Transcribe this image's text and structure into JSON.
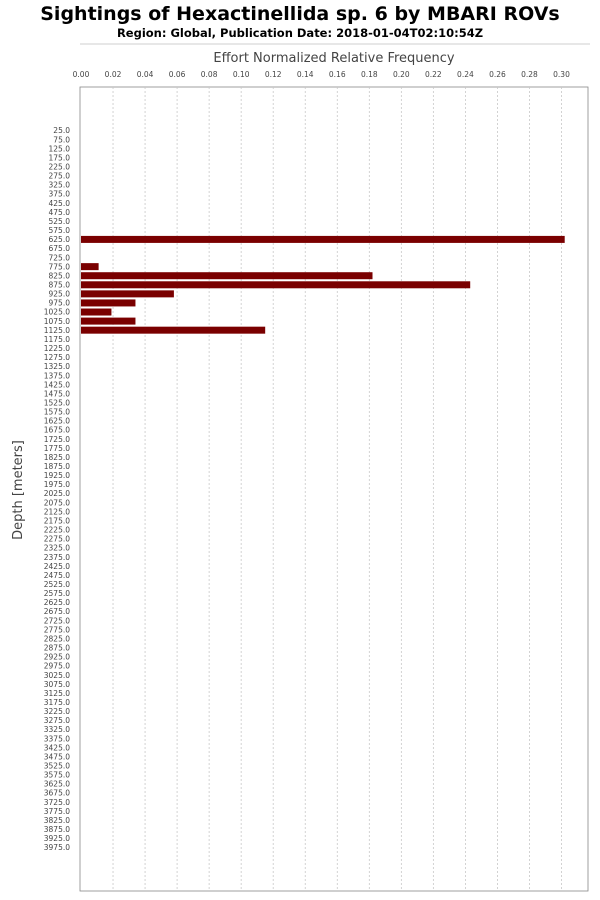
{
  "chart_data": {
    "type": "bar",
    "orientation": "horizontal",
    "title": "Sightings of Hexactinellida sp. 6 by MBARI ROVs",
    "subtitle": "Region: Global, Publication Date: 2018-01-04T02:10:54Z",
    "xlabel": "Effort Normalized Relative Frequency",
    "ylabel": "Depth [meters]",
    "xlim": [
      0,
      0.315
    ],
    "x_ticks": [
      "0.00",
      "0.02",
      "0.04",
      "0.06",
      "0.08",
      "0.10",
      "0.12",
      "0.14",
      "0.16",
      "0.18",
      "0.20",
      "0.22",
      "0.24",
      "0.26",
      "0.28",
      "0.30"
    ],
    "grid": true,
    "categories": [
      "25.0",
      "75.0",
      "125.0",
      "175.0",
      "225.0",
      "275.0",
      "325.0",
      "375.0",
      "425.0",
      "475.0",
      "525.0",
      "575.0",
      "625.0",
      "675.0",
      "725.0",
      "775.0",
      "825.0",
      "875.0",
      "925.0",
      "975.0",
      "1025.0",
      "1075.0",
      "1125.0",
      "1175.0",
      "1225.0",
      "1275.0",
      "1325.0",
      "1375.0",
      "1425.0",
      "1475.0",
      "1525.0",
      "1575.0",
      "1625.0",
      "1675.0",
      "1725.0",
      "1775.0",
      "1825.0",
      "1875.0",
      "1925.0",
      "1975.0",
      "2025.0",
      "2075.0",
      "2125.0",
      "2175.0",
      "2225.0",
      "2275.0",
      "2325.0",
      "2375.0",
      "2425.0",
      "2475.0",
      "2525.0",
      "2575.0",
      "2625.0",
      "2675.0",
      "2725.0",
      "2775.0",
      "2825.0",
      "2875.0",
      "2925.0",
      "2975.0",
      "3025.0",
      "3075.0",
      "3125.0",
      "3175.0",
      "3225.0",
      "3275.0",
      "3325.0",
      "3375.0",
      "3425.0",
      "3475.0",
      "3525.0",
      "3575.0",
      "3625.0",
      "3675.0",
      "3725.0",
      "3775.0",
      "3825.0",
      "3875.0",
      "3925.0",
      "3975.0"
    ],
    "values": [
      0,
      0,
      0,
      0,
      0,
      0,
      0,
      0,
      0,
      0,
      0,
      0,
      0.302,
      0,
      0,
      0.011,
      0.182,
      0.243,
      0.058,
      0.034,
      0.019,
      0.034,
      0.115,
      0,
      0,
      0,
      0,
      0,
      0,
      0,
      0,
      0,
      0,
      0,
      0,
      0,
      0,
      0,
      0,
      0,
      0,
      0,
      0,
      0,
      0,
      0,
      0,
      0,
      0,
      0,
      0,
      0,
      0,
      0,
      0,
      0,
      0,
      0,
      0,
      0,
      0,
      0,
      0,
      0,
      0,
      0,
      0,
      0,
      0,
      0,
      0,
      0,
      0,
      0,
      0,
      0,
      0,
      0,
      0,
      0
    ],
    "bar_color": "#7a0000"
  }
}
